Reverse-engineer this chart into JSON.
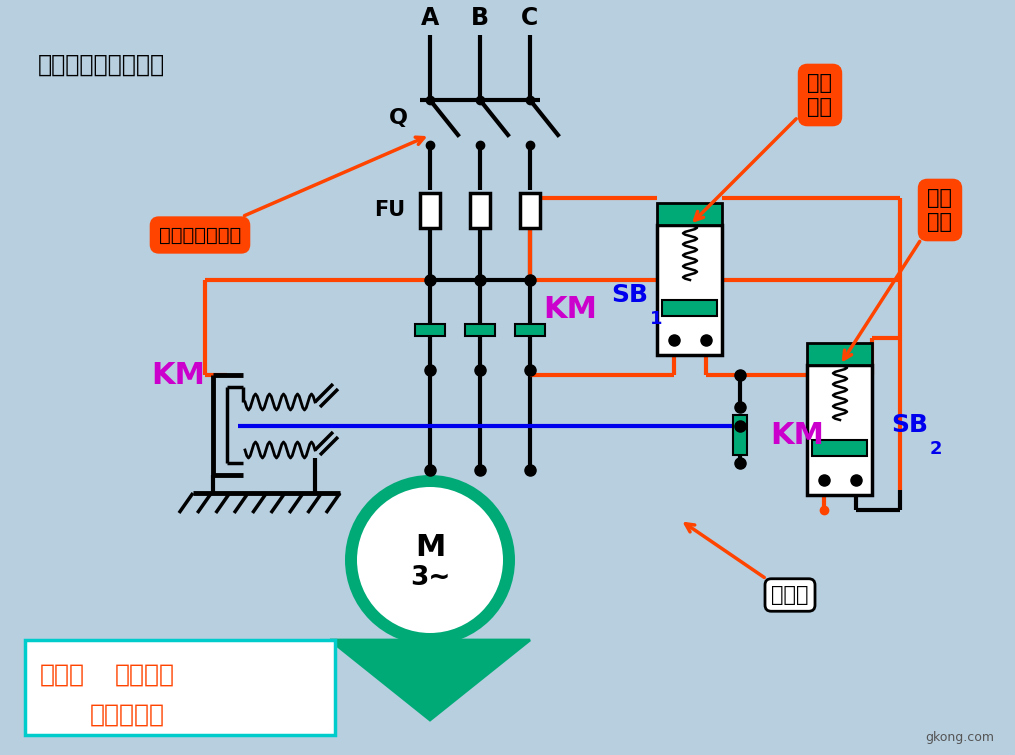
{
  "bg_color": "#b8cfe0",
  "title_text": "简单的接触器控制：",
  "abc_labels": [
    "A",
    "B",
    "C"
  ],
  "red": "#ff4400",
  "blue": "#0000ee",
  "teal": "#00aa77",
  "mag": "#cc00cc",
  "black": "#000000",
  "white": "#ffffff",
  "feature_text1": "特点：  小电流控",
  "feature_text2": "制大电流。",
  "stop_btn": "停止\n按钮",
  "start_btn": "起动\n按钮",
  "blade_label": "刀闸起隔离作用",
  "self_hold": "自保持",
  "KM_label": "KM",
  "SB1_label": "SB",
  "SB2_label": "SB"
}
